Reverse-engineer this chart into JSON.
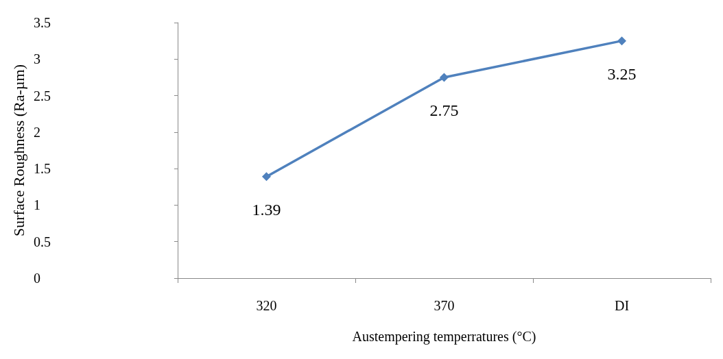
{
  "chart_data": {
    "type": "line",
    "xlabel": "Austempering temperratures (°C)",
    "ylabel": "Surface Roughness (Ra-µm)",
    "categories": [
      "320",
      "370",
      "DI"
    ],
    "series": [
      {
        "color": "#4f81bd",
        "values": [
          1.39,
          2.75,
          3.25
        ]
      }
    ],
    "ylim": [
      0,
      3.5
    ],
    "yticks": [
      0,
      0.5,
      1,
      1.5,
      2,
      2.5,
      3,
      3.5
    ],
    "data_labels": true,
    "marker": "diamond",
    "line_style": "solid",
    "grid": false
  }
}
